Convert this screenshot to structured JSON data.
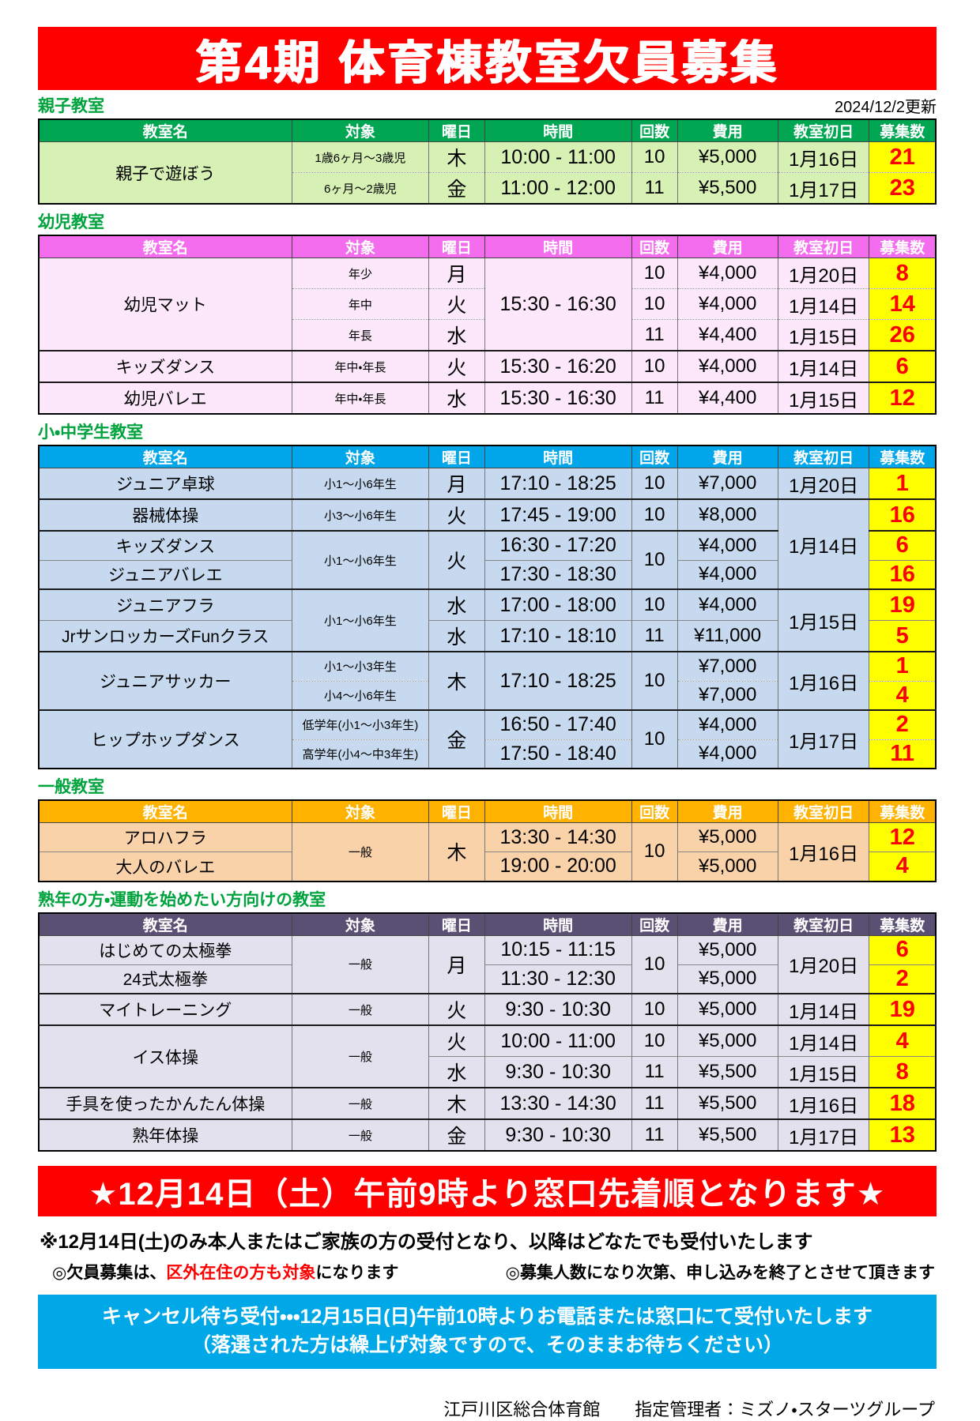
{
  "title": "第4期 体育棟教室欠員募集",
  "updated": "2024/12/2更新",
  "columns": [
    "教室名",
    "対象",
    "曜日",
    "時間",
    "回数",
    "費用",
    "教室初日",
    "募集数"
  ],
  "sections": [
    {
      "label": "親子教室",
      "header_color": "#00a651",
      "body_color": "#d7f1b5",
      "rows": [
        {
          "sep": "none",
          "cells": [
            {
              "c": "name",
              "t": "親子で遊ぼう",
              "rs": 2
            },
            {
              "c": "target",
              "t": "1歳6ヶ月～3歳児"
            },
            {
              "c": "day",
              "t": "木"
            },
            {
              "c": "time",
              "t": "10:00 - 11:00"
            },
            {
              "c": "count",
              "t": "10"
            },
            {
              "c": "fee",
              "t": "¥5,000"
            },
            {
              "c": "date",
              "t": "1月16日"
            },
            {
              "c": "quota",
              "t": "21"
            }
          ]
        },
        {
          "sep": "dot",
          "cells": [
            {
              "c": "target",
              "t": "6ヶ月～2歳児"
            },
            {
              "c": "day",
              "t": "金"
            },
            {
              "c": "time",
              "t": "11:00 - 12:00"
            },
            {
              "c": "count",
              "t": "11"
            },
            {
              "c": "fee",
              "t": "¥5,500"
            },
            {
              "c": "date",
              "t": "1月17日"
            },
            {
              "c": "quota",
              "t": "23"
            }
          ]
        }
      ]
    },
    {
      "label": "幼児教室",
      "header_color": "#f36dee",
      "body_color": "#fce8fa",
      "rows": [
        {
          "sep": "none",
          "cells": [
            {
              "c": "name",
              "t": "幼児マット",
              "rs": 3
            },
            {
              "c": "target",
              "t": "年少"
            },
            {
              "c": "day",
              "t": "月"
            },
            {
              "c": "time",
              "t": "15:30 - 16:30",
              "rs": 3
            },
            {
              "c": "count",
              "t": "10"
            },
            {
              "c": "fee",
              "t": "¥4,000"
            },
            {
              "c": "date",
              "t": "1月20日"
            },
            {
              "c": "quota",
              "t": "8"
            }
          ]
        },
        {
          "sep": "dot",
          "cells": [
            {
              "c": "target",
              "t": "年中"
            },
            {
              "c": "day",
              "t": "火"
            },
            {
              "c": "count",
              "t": "10"
            },
            {
              "c": "fee",
              "t": "¥4,000"
            },
            {
              "c": "date",
              "t": "1月14日"
            },
            {
              "c": "quota",
              "t": "14"
            }
          ]
        },
        {
          "sep": "dot",
          "cells": [
            {
              "c": "target",
              "t": "年長"
            },
            {
              "c": "day",
              "t": "水"
            },
            {
              "c": "count",
              "t": "11"
            },
            {
              "c": "fee",
              "t": "¥4,400"
            },
            {
              "c": "date",
              "t": "1月15日"
            },
            {
              "c": "quota",
              "t": "26"
            }
          ]
        },
        {
          "sep": "thick",
          "cells": [
            {
              "c": "name",
              "t": "キッズダンス"
            },
            {
              "c": "target",
              "t": "年中・年長"
            },
            {
              "c": "day",
              "t": "火"
            },
            {
              "c": "time",
              "t": "15:30 - 16:20"
            },
            {
              "c": "count",
              "t": "10"
            },
            {
              "c": "fee",
              "t": "¥4,000"
            },
            {
              "c": "date",
              "t": "1月14日"
            },
            {
              "c": "quota",
              "t": "6"
            }
          ]
        },
        {
          "sep": "thick",
          "cells": [
            {
              "c": "name",
              "t": "幼児バレエ"
            },
            {
              "c": "target",
              "t": "年中・年長"
            },
            {
              "c": "day",
              "t": "水"
            },
            {
              "c": "time",
              "t": "15:30 - 16:30"
            },
            {
              "c": "count",
              "t": "11"
            },
            {
              "c": "fee",
              "t": "¥4,400"
            },
            {
              "c": "date",
              "t": "1月15日"
            },
            {
              "c": "quota",
              "t": "12"
            }
          ]
        }
      ]
    },
    {
      "label": "小・中学生教室",
      "header_color": "#00a6e9",
      "body_color": "#c6d9ee",
      "rows": [
        {
          "sep": "none",
          "cells": [
            {
              "c": "name",
              "t": "ジュニア卓球"
            },
            {
              "c": "target",
              "t": "小1～小6年生"
            },
            {
              "c": "day",
              "t": "月"
            },
            {
              "c": "time",
              "t": "17:10 - 18:25"
            },
            {
              "c": "count",
              "t": "10"
            },
            {
              "c": "fee",
              "t": "¥7,000"
            },
            {
              "c": "date",
              "t": "1月20日"
            },
            {
              "c": "quota",
              "t": "1"
            }
          ]
        },
        {
          "sep": "thick",
          "cells": [
            {
              "c": "name",
              "t": "器械体操"
            },
            {
              "c": "target",
              "t": "小3～小6年生"
            },
            {
              "c": "day",
              "t": "火"
            },
            {
              "c": "time",
              "t": "17:45 - 19:00"
            },
            {
              "c": "count",
              "t": "10"
            },
            {
              "c": "fee",
              "t": "¥8,000"
            },
            {
              "c": "date",
              "t": "1月14日",
              "rs": 3
            },
            {
              "c": "quota",
              "t": "16"
            }
          ]
        },
        {
          "sep": "thick",
          "cells": [
            {
              "c": "name",
              "t": "キッズダンス"
            },
            {
              "c": "target",
              "t": "小1～小6年生",
              "rs": 2
            },
            {
              "c": "day",
              "t": "火",
              "rs": 2
            },
            {
              "c": "time",
              "t": "16:30 - 17:20"
            },
            {
              "c": "count",
              "t": "10",
              "rs": 2
            },
            {
              "c": "fee",
              "t": "¥4,000"
            },
            {
              "c": "quota",
              "t": "6"
            }
          ]
        },
        {
          "sep": "thin",
          "cells": [
            {
              "c": "name",
              "t": "ジュニアバレエ"
            },
            {
              "c": "time",
              "t": "17:30 - 18:30"
            },
            {
              "c": "fee",
              "t": "¥4,000"
            },
            {
              "c": "quota",
              "t": "16"
            }
          ]
        },
        {
          "sep": "thick",
          "cells": [
            {
              "c": "name",
              "t": "ジュニアフラ"
            },
            {
              "c": "target",
              "t": "小1～小6年生",
              "rs": 2
            },
            {
              "c": "day",
              "t": "水"
            },
            {
              "c": "time",
              "t": "17:00 - 18:00"
            },
            {
              "c": "count",
              "t": "10"
            },
            {
              "c": "fee",
              "t": "¥4,000"
            },
            {
              "c": "date",
              "t": "1月15日",
              "rs": 2
            },
            {
              "c": "quota",
              "t": "19"
            }
          ]
        },
        {
          "sep": "thin",
          "cells": [
            {
              "c": "name",
              "t": "JrサンロッカーズFunクラス"
            },
            {
              "c": "day",
              "t": "水"
            },
            {
              "c": "time",
              "t": "17:10 - 18:10"
            },
            {
              "c": "count",
              "t": "11"
            },
            {
              "c": "fee",
              "t": "¥11,000"
            },
            {
              "c": "quota",
              "t": "5"
            }
          ]
        },
        {
          "sep": "thick",
          "cells": [
            {
              "c": "name",
              "t": "ジュニアサッカー",
              "rs": 2
            },
            {
              "c": "target",
              "t": "小1～小3年生"
            },
            {
              "c": "day",
              "t": "木",
              "rs": 2
            },
            {
              "c": "time",
              "t": "17:10 - 18:25",
              "rs": 2
            },
            {
              "c": "count",
              "t": "10",
              "rs": 2
            },
            {
              "c": "fee",
              "t": "¥7,000"
            },
            {
              "c": "date",
              "t": "1月16日",
              "rs": 2
            },
            {
              "c": "quota",
              "t": "1"
            }
          ]
        },
        {
          "sep": "dot",
          "cells": [
            {
              "c": "target",
              "t": "小4～小6年生"
            },
            {
              "c": "fee",
              "t": "¥7,000"
            },
            {
              "c": "quota",
              "t": "4"
            }
          ]
        },
        {
          "sep": "thick",
          "cells": [
            {
              "c": "name",
              "t": "ヒップホップダンス",
              "rs": 2
            },
            {
              "c": "target",
              "t": "低学年(小1～小3年生)"
            },
            {
              "c": "day",
              "t": "金",
              "rs": 2
            },
            {
              "c": "time",
              "t": "16:50 - 17:40"
            },
            {
              "c": "count",
              "t": "10",
              "rs": 2
            },
            {
              "c": "fee",
              "t": "¥4,000"
            },
            {
              "c": "date",
              "t": "1月17日",
              "rs": 2
            },
            {
              "c": "quota",
              "t": "2"
            }
          ]
        },
        {
          "sep": "dot",
          "cells": [
            {
              "c": "target",
              "t": "高学年(小4～中3年生)"
            },
            {
              "c": "time",
              "t": "17:50 - 18:40"
            },
            {
              "c": "fee",
              "t": "¥4,000"
            },
            {
              "c": "quota",
              "t": "11"
            }
          ]
        }
      ]
    },
    {
      "label": "一般教室",
      "header_color": "#ffb200",
      "body_color": "#f9d2a9",
      "rows": [
        {
          "sep": "none",
          "cells": [
            {
              "c": "name",
              "t": "アロハフラ"
            },
            {
              "c": "target",
              "t": "一般",
              "rs": 2
            },
            {
              "c": "day",
              "t": "木",
              "rs": 2
            },
            {
              "c": "time",
              "t": "13:30 - 14:30"
            },
            {
              "c": "count",
              "t": "10",
              "rs": 2
            },
            {
              "c": "fee",
              "t": "¥5,000"
            },
            {
              "c": "date",
              "t": "1月16日",
              "rs": 2
            },
            {
              "c": "quota",
              "t": "12"
            }
          ]
        },
        {
          "sep": "thin",
          "cells": [
            {
              "c": "name",
              "t": "大人のバレエ"
            },
            {
              "c": "time",
              "t": "19:00 - 20:00"
            },
            {
              "c": "fee",
              "t": "¥5,000"
            },
            {
              "c": "quota",
              "t": "4"
            }
          ]
        }
      ]
    },
    {
      "label": "熟年の方・運動を始めたい方向けの教室",
      "header_color": "#5a5074",
      "body_color": "#e3e1ed",
      "rows": [
        {
          "sep": "none",
          "cells": [
            {
              "c": "name",
              "t": "はじめての太極拳"
            },
            {
              "c": "target",
              "t": "一般",
              "rs": 2
            },
            {
              "c": "day",
              "t": "月",
              "rs": 2
            },
            {
              "c": "time",
              "t": "10:15 - 11:15"
            },
            {
              "c": "count",
              "t": "10",
              "rs": 2
            },
            {
              "c": "fee",
              "t": "¥5,000"
            },
            {
              "c": "date",
              "t": "1月20日",
              "rs": 2
            },
            {
              "c": "quota",
              "t": "6"
            }
          ]
        },
        {
          "sep": "thin",
          "cells": [
            {
              "c": "name",
              "t": "24式太極拳"
            },
            {
              "c": "time",
              "t": "11:30 - 12:30"
            },
            {
              "c": "fee",
              "t": "¥5,000"
            },
            {
              "c": "quota",
              "t": "2"
            }
          ]
        },
        {
          "sep": "thick",
          "cells": [
            {
              "c": "name",
              "t": "マイトレーニング"
            },
            {
              "c": "target",
              "t": "一般"
            },
            {
              "c": "day",
              "t": "火"
            },
            {
              "c": "time",
              "t": "9:30 - 10:30"
            },
            {
              "c": "count",
              "t": "10"
            },
            {
              "c": "fee",
              "t": "¥5,000"
            },
            {
              "c": "date",
              "t": "1月14日"
            },
            {
              "c": "quota",
              "t": "19"
            }
          ]
        },
        {
          "sep": "thick",
          "cells": [
            {
              "c": "name",
              "t": "イス体操",
              "rs": 2
            },
            {
              "c": "target",
              "t": "一般",
              "rs": 2
            },
            {
              "c": "day",
              "t": "火"
            },
            {
              "c": "time",
              "t": "10:00 - 11:00"
            },
            {
              "c": "count",
              "t": "10"
            },
            {
              "c": "fee",
              "t": "¥5,000"
            },
            {
              "c": "date",
              "t": "1月14日"
            },
            {
              "c": "quota",
              "t": "4"
            }
          ]
        },
        {
          "sep": "thin",
          "cells": [
            {
              "c": "day",
              "t": "水"
            },
            {
              "c": "time",
              "t": "9:30 - 10:30"
            },
            {
              "c": "count",
              "t": "11"
            },
            {
              "c": "fee",
              "t": "¥5,500"
            },
            {
              "c": "date",
              "t": "1月15日"
            },
            {
              "c": "quota",
              "t": "8"
            }
          ]
        },
        {
          "sep": "thick",
          "cells": [
            {
              "c": "name",
              "t": "手具を使ったかんたん体操"
            },
            {
              "c": "target",
              "t": "一般"
            },
            {
              "c": "day",
              "t": "木"
            },
            {
              "c": "time",
              "t": "13:30 - 14:30"
            },
            {
              "c": "count",
              "t": "11"
            },
            {
              "c": "fee",
              "t": "¥5,500"
            },
            {
              "c": "date",
              "t": "1月16日"
            },
            {
              "c": "quota",
              "t": "18"
            }
          ]
        },
        {
          "sep": "thick",
          "cells": [
            {
              "c": "name",
              "t": "熟年体操"
            },
            {
              "c": "target",
              "t": "一般"
            },
            {
              "c": "day",
              "t": "金"
            },
            {
              "c": "time",
              "t": "9:30 - 10:30"
            },
            {
              "c": "count",
              "t": "11"
            },
            {
              "c": "fee",
              "t": "¥5,500"
            },
            {
              "c": "date",
              "t": "1月17日"
            },
            {
              "c": "quota",
              "t": "13"
            }
          ]
        }
      ]
    }
  ],
  "notice_banner": "★12月14日（土）午前9時より窓口先着順となります★",
  "note1": "※12月14日(土)のみ本人またはご家族の方の受付となり、以降はどなたでも受付いたします",
  "note2_prefix": "◎欠員募集は、",
  "note2_highlight": "区外在住の方も対象",
  "note2_suffix": "になります",
  "note3": "◎募集人数になり次第、申し込みを終了とさせて頂きます",
  "cancel_line1": "キャンセル待ち受付・・・12月15日(日)午前10時よりお電話または窓口にて受付いたします",
  "cancel_line2": "（落選された方は繰上げ対象ですので、そのままお待ちください）",
  "footer": "江戸川区総合体育館　　指定管理者：ミズノ・スターツグループ",
  "colors": {
    "banner_red": "#fe0000",
    "label_green": "#00a33e",
    "quota_bg": "#ffff00",
    "quota_text": "#fe0000",
    "cancel_blue": "#00a8e8"
  }
}
